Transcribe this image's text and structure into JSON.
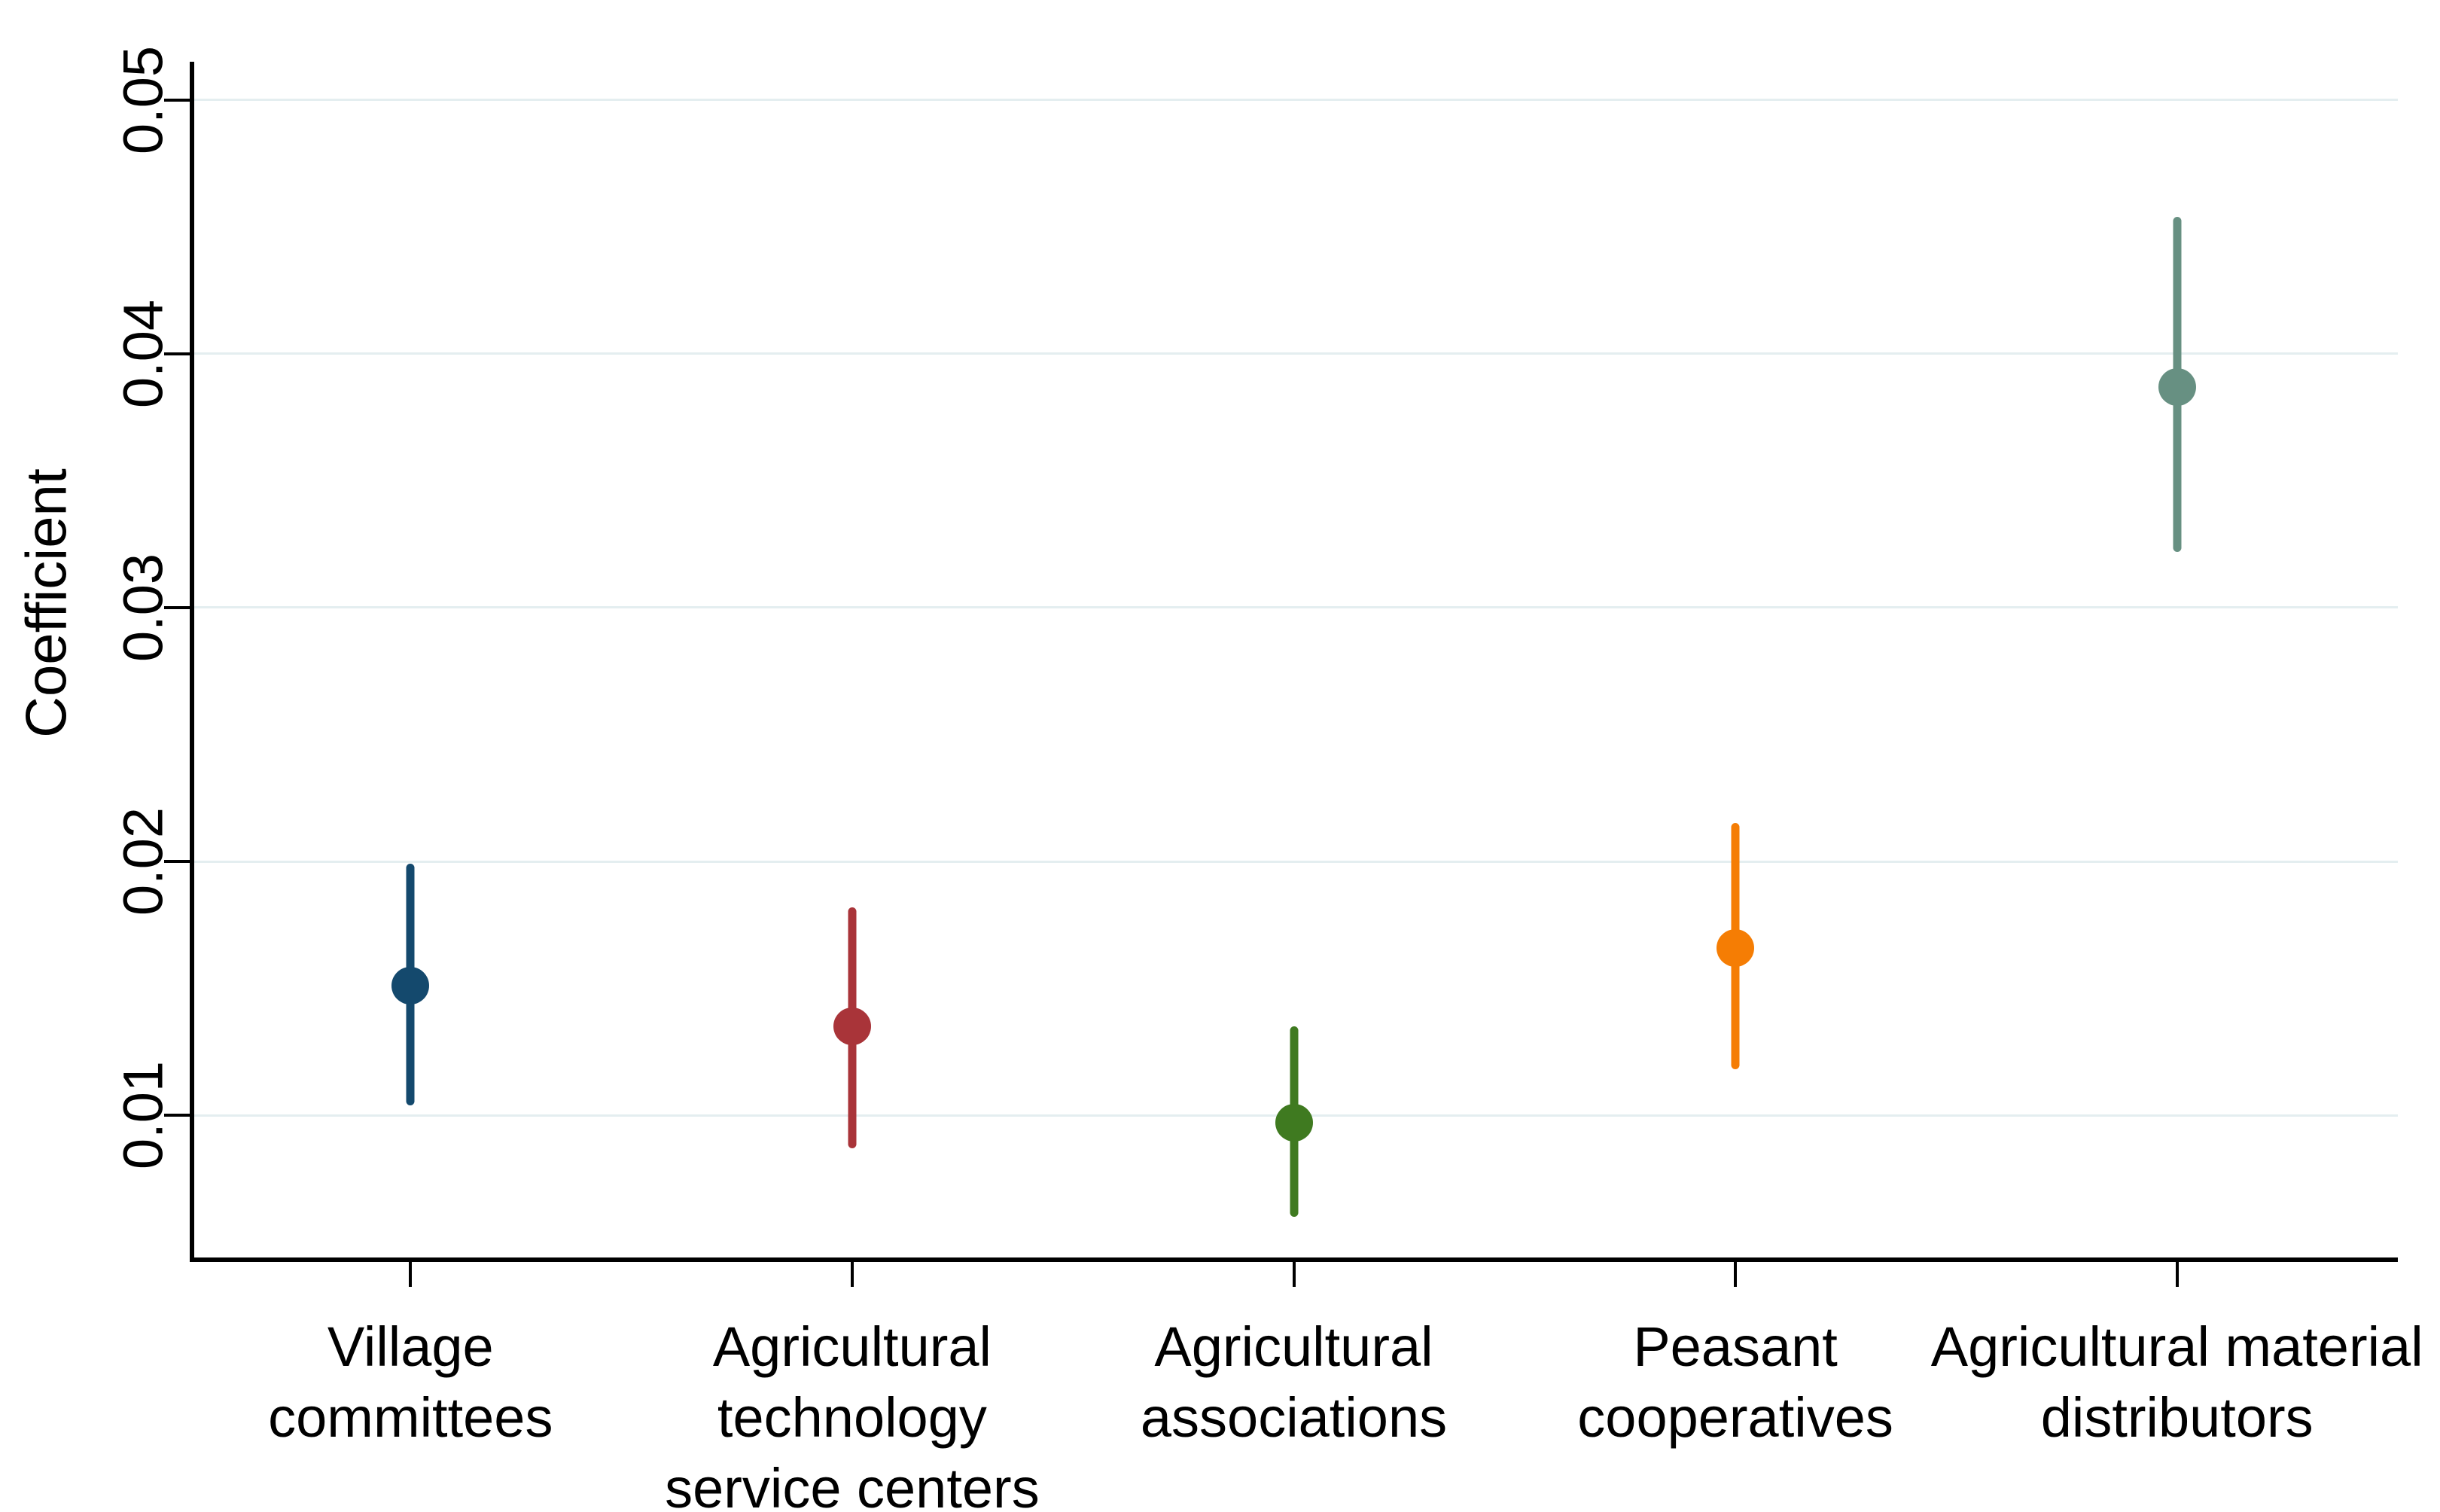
{
  "figure": {
    "background": "#ffffff",
    "axis_color": "#000000",
    "text_color": "#000000"
  },
  "chart_data": {
    "type": "scatter",
    "subtype": "coefficient-plot-with-confidence-intervals",
    "title": "",
    "xlabel": "",
    "ylabel": "Coefficient",
    "legend": "none",
    "grid": "horizontal",
    "gridline_color": "#e4eef0",
    "ylim": [
      0.0044,
      0.0515
    ],
    "y_ticks": [
      0.05,
      0.04,
      0.03,
      0.02,
      0.01
    ],
    "y_tick_labels": [
      "0.05",
      "0.04",
      "0.03",
      "0.02",
      "0.01"
    ],
    "categories": [
      "Village committees",
      "Agricultural technology service centers",
      "Agricultural associations",
      "Peasant cooperatives",
      "Agricultural material distributors"
    ],
    "category_label_lines": [
      [
        "Village",
        "committees"
      ],
      [
        "Agricultural",
        "technology",
        "service centers"
      ],
      [
        "Agricultural",
        "associations"
      ],
      [
        "Peasant",
        "cooperatives"
      ],
      [
        "Agricultural material",
        "distributors"
      ]
    ],
    "series": [
      {
        "name": "Coefficient estimate with confidence interval",
        "points": [
          {
            "category": "Village committees",
            "estimate": 0.0151,
            "ci_low": 0.0104,
            "ci_high": 0.0199,
            "color": "#14496d"
          },
          {
            "category": "Agricultural technology service centers",
            "estimate": 0.0135,
            "ci_low": 0.0087,
            "ci_high": 0.0182,
            "color": "#a93439"
          },
          {
            "category": "Agricultural associations",
            "estimate": 0.0097,
            "ci_low": 0.006,
            "ci_high": 0.0135,
            "color": "#3f7a20"
          },
          {
            "category": "Peasant cooperatives",
            "estimate": 0.0166,
            "ci_low": 0.0118,
            "ci_high": 0.0215,
            "color": "#f57d04"
          },
          {
            "category": "Agricultural material distributors",
            "estimate": 0.0387,
            "ci_low": 0.0322,
            "ci_high": 0.0454,
            "color": "#679082"
          }
        ]
      }
    ]
  }
}
